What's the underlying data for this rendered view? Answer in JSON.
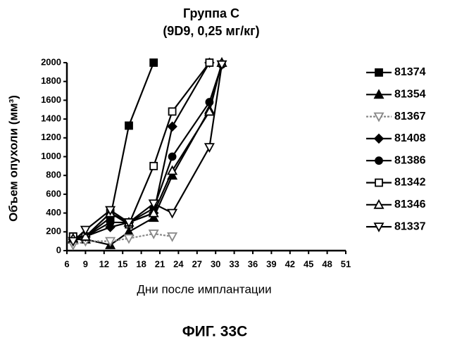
{
  "chart_data": {
    "type": "line",
    "title": "Группа C",
    "subtitle": "(9D9, 0,25 мг/кг)",
    "y_label": "Объем опухоли (мм³)",
    "x_label": "Дни после имплантации",
    "caption": "ФИГ. 33C",
    "x": [
      7,
      9,
      13,
      16,
      20,
      23,
      29,
      31
    ],
    "xlim": [
      6,
      51
    ],
    "xticks": [
      6,
      9,
      12,
      15,
      18,
      21,
      24,
      27,
      30,
      33,
      36,
      39,
      42,
      45,
      48,
      51
    ],
    "ylim": [
      0,
      2000
    ],
    "yticks": [
      0,
      200,
      400,
      600,
      800,
      1000,
      1200,
      1400,
      1600,
      1800,
      2000
    ],
    "series": [
      {
        "name": "81374",
        "color": "#000000",
        "marker": "square-filled",
        "values": [
          150,
          150,
          350,
          1330,
          2000,
          null,
          null,
          null
        ]
      },
      {
        "name": "81354",
        "color": "#000000",
        "marker": "triangle-filled",
        "values": [
          120,
          120,
          60,
          200,
          350,
          800,
          1500,
          2000
        ]
      },
      {
        "name": "81367",
        "color": "#888888",
        "marker": "down-open",
        "dashed": true,
        "values": [
          60,
          100,
          100,
          130,
          180,
          150,
          null,
          null
        ]
      },
      {
        "name": "81408",
        "color": "#000000",
        "marker": "diamond-filled",
        "values": [
          120,
          150,
          250,
          300,
          400,
          1320,
          2000,
          null
        ]
      },
      {
        "name": "81386",
        "color": "#000000",
        "marker": "circle-filled",
        "values": [
          150,
          150,
          300,
          300,
          450,
          1000,
          1580,
          1980
        ]
      },
      {
        "name": "81342",
        "color": "#000000",
        "marker": "square-open",
        "values": [
          150,
          150,
          400,
          280,
          900,
          1480,
          2000,
          null
        ]
      },
      {
        "name": "81346",
        "color": "#000000",
        "marker": "triangle-open",
        "values": [
          130,
          150,
          400,
          300,
          400,
          850,
          1480,
          2000
        ]
      },
      {
        "name": "81337",
        "color": "#000000",
        "marker": "down-open",
        "values": [
          100,
          220,
          430,
          300,
          500,
          400,
          1100,
          1980
        ]
      }
    ]
  }
}
